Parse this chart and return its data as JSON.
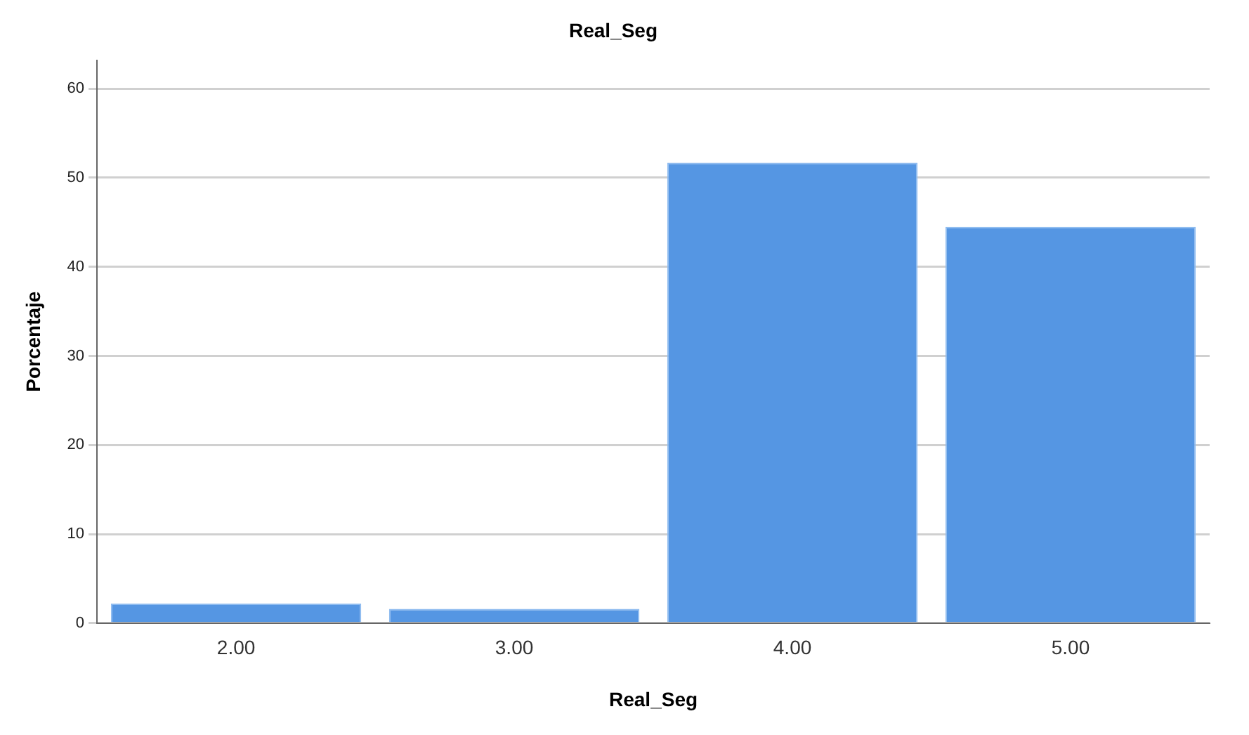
{
  "chart_data": {
    "type": "bar",
    "title": "Real_Seg",
    "xlabel": "Real_Seg",
    "ylabel": "Porcentaje",
    "categories": [
      "2.00",
      "3.00",
      "4.00",
      "5.00"
    ],
    "values": [
      2.2,
      1.6,
      51.7,
      44.5
    ],
    "color": "#5596e3",
    "ylim": [
      0,
      63.2
    ],
    "yticks": [
      0,
      10,
      20,
      30,
      40,
      50,
      60
    ],
    "grid": "y"
  }
}
